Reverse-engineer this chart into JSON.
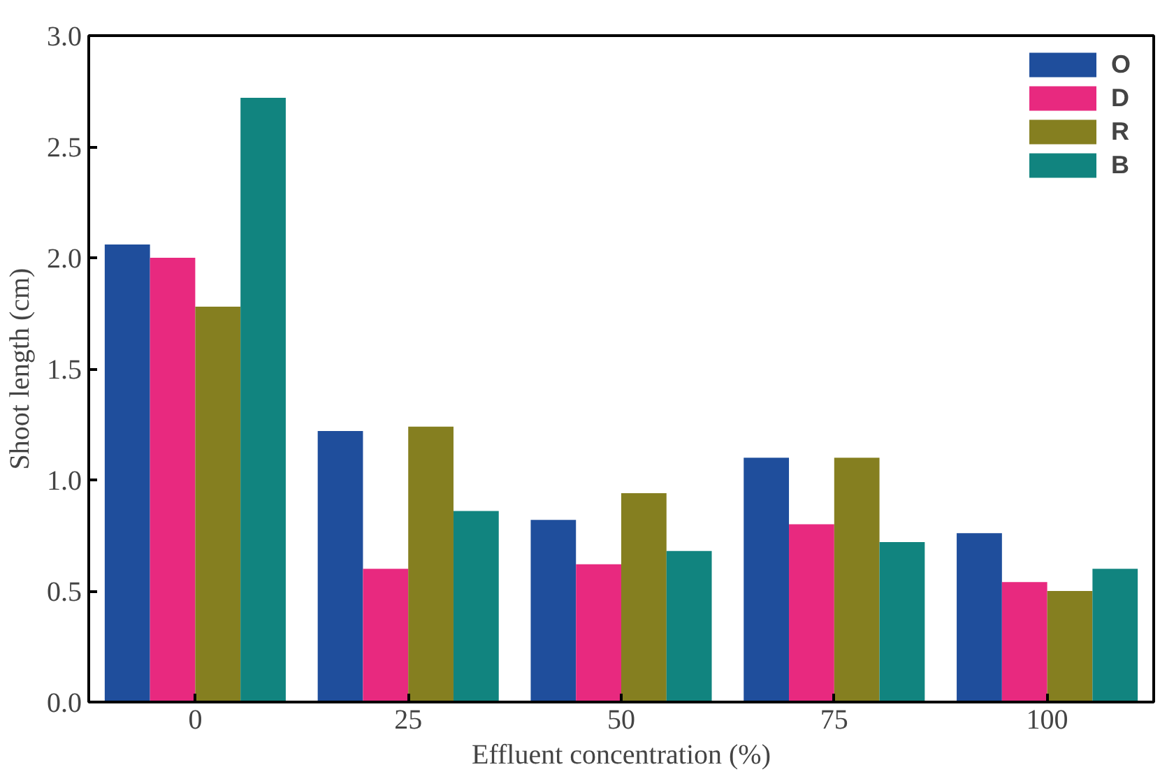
{
  "chart_data": {
    "type": "bar",
    "xlabel": "Effluent concentration (%)",
    "ylabel": "Shoot length (cm)",
    "categories": [
      "0",
      "25",
      "50",
      "75",
      "100"
    ],
    "series": [
      {
        "name": "O",
        "color": "#1f4e9c",
        "values": [
          2.06,
          1.22,
          0.82,
          1.1,
          0.76
        ]
      },
      {
        "name": "D",
        "color": "#e8297f",
        "values": [
          2.0,
          0.6,
          0.62,
          0.8,
          0.54
        ]
      },
      {
        "name": "R",
        "color": "#857f20",
        "values": [
          1.78,
          1.24,
          0.94,
          1.1,
          0.5
        ]
      },
      {
        "name": "B",
        "color": "#11847f",
        "values": [
          2.72,
          0.86,
          0.68,
          0.72,
          0.6
        ]
      }
    ],
    "ylim": [
      0,
      3.0
    ],
    "yticks": [
      {
        "value": 0,
        "label": "0.0"
      },
      {
        "value": 0.5,
        "label": "0.5"
      },
      {
        "value": 1,
        "label": "1.0"
      },
      {
        "value": 1.5,
        "label": "1.5"
      },
      {
        "value": 2,
        "label": "2.0"
      },
      {
        "value": 2.5,
        "label": "2.5"
      },
      {
        "value": 3,
        "label": "3.0"
      }
    ],
    "grid": false,
    "legend": "top right"
  }
}
